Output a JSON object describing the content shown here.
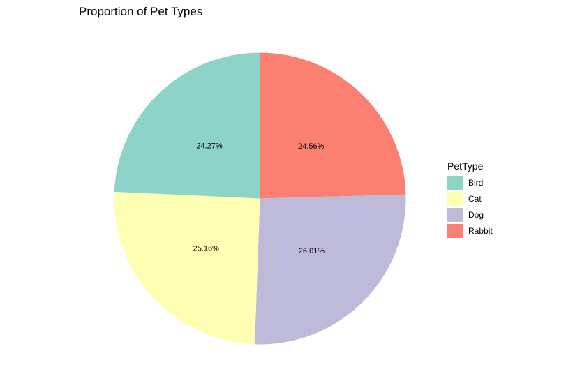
{
  "chart_data": {
    "type": "pie",
    "title": "Proportion of Pet Types",
    "legend_title": "PetType",
    "legend_position": "right",
    "categories": [
      "Bird",
      "Cat",
      "Dog",
      "Rabbit"
    ],
    "values": [
      24.27,
      25.16,
      26.01,
      24.56
    ],
    "labels": [
      "24.27%",
      "25.16%",
      "26.01%",
      "24.56%"
    ],
    "colors": [
      "#8DD3C7",
      "#FFFFB3",
      "#BEBADA",
      "#FB8072"
    ]
  }
}
